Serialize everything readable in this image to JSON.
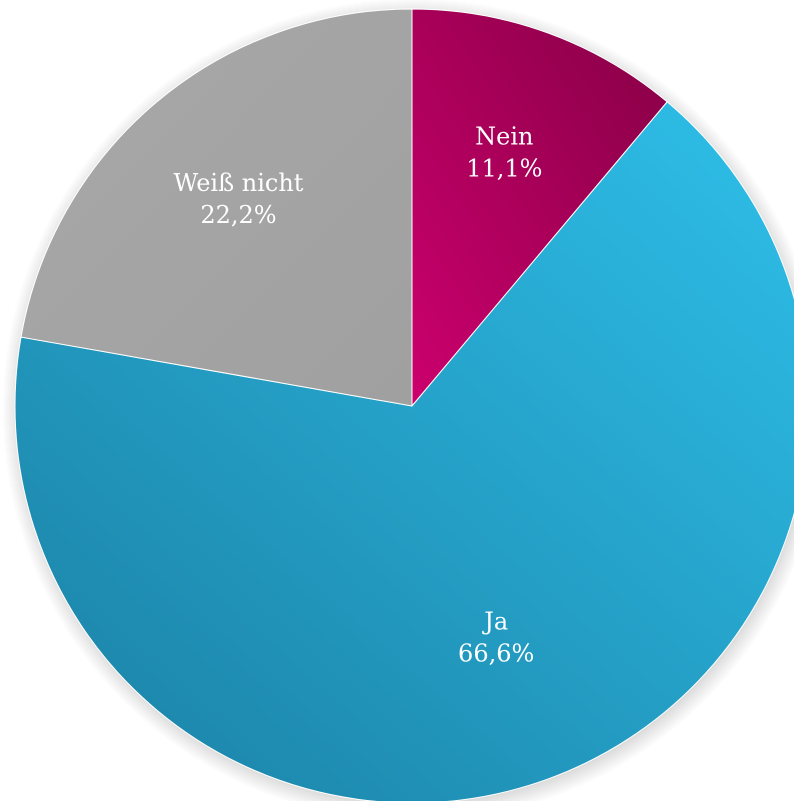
{
  "chart_data": {
    "type": "pie",
    "title": "",
    "slices": [
      {
        "label": "Nein",
        "value": 11.1,
        "value_label": "11,1%",
        "color": "#b0005e"
      },
      {
        "label": "Ja",
        "value": 66.6,
        "value_label": "66,6%",
        "color": "#27a9d4"
      },
      {
        "label": "Weiß nicht",
        "value": 22.2,
        "value_label": "22,2%",
        "color": "#a6a6a6"
      }
    ],
    "start": "12 o'clock",
    "direction": "clockwise",
    "legend": "none",
    "labels": "inside slices"
  }
}
